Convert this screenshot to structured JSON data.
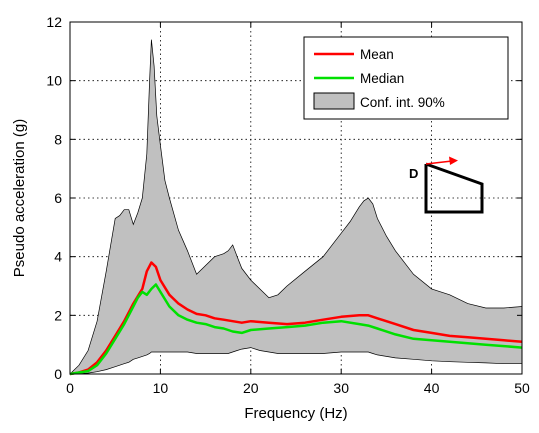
{
  "chart_data": {
    "type": "area",
    "title": "",
    "xlabel": "Frequency (Hz)",
    "ylabel": "Pseudo acceleration (g)",
    "xlim": [
      0,
      50
    ],
    "ylim": [
      0,
      12
    ],
    "xticks": [
      0,
      10,
      20,
      30,
      40,
      50
    ],
    "yticks": [
      0,
      2,
      4,
      6,
      8,
      10,
      12
    ],
    "grid": true,
    "legend_position": "top-right",
    "series": [
      {
        "name": "Mean",
        "kind": "line",
        "color": "#ff0000",
        "x": [
          0,
          1,
          2,
          3,
          4,
          5,
          6,
          7,
          8,
          8.5,
          9,
          9.5,
          10,
          11,
          12,
          13,
          14,
          15,
          16,
          17,
          18,
          19,
          20,
          22,
          24,
          26,
          28,
          30,
          32,
          33,
          34,
          36,
          38,
          40,
          42,
          44,
          46,
          48,
          50
        ],
        "y": [
          0,
          0.05,
          0.15,
          0.4,
          0.8,
          1.3,
          1.8,
          2.4,
          2.9,
          3.5,
          3.8,
          3.65,
          3.2,
          2.7,
          2.4,
          2.2,
          2.05,
          2.0,
          1.9,
          1.85,
          1.8,
          1.75,
          1.8,
          1.75,
          1.7,
          1.75,
          1.85,
          1.95,
          2.0,
          2.0,
          1.9,
          1.7,
          1.5,
          1.4,
          1.3,
          1.25,
          1.2,
          1.15,
          1.1
        ]
      },
      {
        "name": "Median",
        "kind": "line",
        "color": "#00e000",
        "x": [
          0,
          1,
          2,
          3,
          4,
          5,
          6,
          7,
          7.5,
          8,
          8.5,
          9,
          9.5,
          10,
          11,
          12,
          13,
          14,
          15,
          16,
          17,
          18,
          19,
          20,
          22,
          24,
          26,
          28,
          30,
          32,
          33,
          34,
          36,
          38,
          40,
          42,
          44,
          46,
          48,
          50
        ],
        "y": [
          0,
          0.05,
          0.1,
          0.3,
          0.7,
          1.2,
          1.7,
          2.3,
          2.6,
          2.8,
          2.7,
          2.9,
          3.05,
          2.8,
          2.3,
          2.0,
          1.85,
          1.75,
          1.7,
          1.6,
          1.55,
          1.45,
          1.4,
          1.5,
          1.55,
          1.6,
          1.65,
          1.75,
          1.8,
          1.7,
          1.65,
          1.55,
          1.35,
          1.2,
          1.15,
          1.1,
          1.05,
          1.0,
          0.95,
          0.9
        ]
      },
      {
        "name": "Conf. int. 90%",
        "kind": "band",
        "color": "#c0c0c0",
        "x": [
          0,
          1,
          2,
          3,
          4,
          5,
          5.5,
          6,
          6.5,
          7,
          7.5,
          8,
          8.5,
          8.8,
          9,
          9.3,
          9.6,
          10,
          10.5,
          11,
          12,
          13,
          14,
          15,
          16,
          17,
          17.5,
          18,
          18.5,
          19,
          20,
          21,
          22,
          23,
          24,
          26,
          28,
          30,
          31,
          32,
          32.5,
          33,
          33.5,
          34,
          35,
          36,
          38,
          40,
          42,
          44,
          46,
          48,
          50
        ],
        "upper": [
          0,
          0.3,
          0.8,
          1.8,
          3.5,
          5.3,
          5.4,
          5.6,
          5.6,
          5.1,
          5.5,
          6.0,
          7.5,
          10.0,
          11.4,
          10.5,
          8.8,
          7.8,
          6.6,
          6.0,
          4.9,
          4.2,
          3.4,
          3.7,
          4.0,
          4.1,
          4.2,
          4.4,
          4.0,
          3.6,
          3.2,
          2.9,
          2.6,
          2.7,
          3.0,
          3.5,
          4.0,
          4.8,
          5.2,
          5.7,
          5.9,
          6.0,
          5.8,
          5.3,
          4.7,
          4.2,
          3.4,
          2.9,
          2.7,
          2.4,
          2.25,
          2.25,
          2.3
        ],
        "lower": [
          0,
          0.01,
          0.03,
          0.08,
          0.15,
          0.25,
          0.3,
          0.35,
          0.4,
          0.5,
          0.55,
          0.6,
          0.65,
          0.7,
          0.75,
          0.75,
          0.75,
          0.75,
          0.75,
          0.75,
          0.75,
          0.75,
          0.7,
          0.7,
          0.7,
          0.7,
          0.7,
          0.75,
          0.8,
          0.85,
          0.9,
          0.8,
          0.75,
          0.7,
          0.7,
          0.7,
          0.7,
          0.75,
          0.75,
          0.75,
          0.75,
          0.75,
          0.7,
          0.65,
          0.6,
          0.55,
          0.5,
          0.45,
          0.42,
          0.4,
          0.38,
          0.35,
          0.35
        ]
      }
    ],
    "annotation": {
      "label": "D",
      "description": "inset sketch of a frame with arrow"
    }
  }
}
